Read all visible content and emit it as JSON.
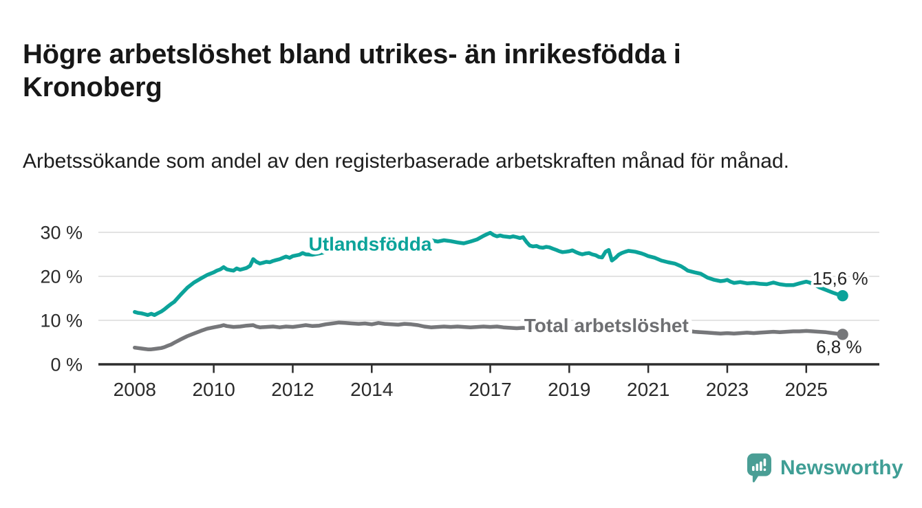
{
  "branding": {
    "logo_text": "Newsworthy",
    "logo_icon": "bar-chart-speech-bubble-icon",
    "logo_color": "#4a9e95"
  },
  "colors": {
    "background": "#ffffff",
    "accent_teal": "#0ca39a",
    "series_gray": "#76777a",
    "axis": "#2d2d2d",
    "grid": "#dadada",
    "title_text": "#171717",
    "logo_teal": "#3f9e95"
  },
  "chart_data": {
    "type": "line",
    "title": "Högre arbetslöshet bland utrikes- än inrikesfödda i Kronoberg",
    "subtitle": "Arbetssökande som andel av den registerbaserade arbetskraften månad för månad.",
    "grid": "horizontal",
    "grid_color": "#dadada",
    "axis_color": "#2d2d2d",
    "legend_position": "inline-labels",
    "xlim": [
      2007.08,
      2026.85
    ],
    "ylim": [
      0,
      31.25
    ],
    "x_ticks": [
      {
        "v": 2008,
        "label": "2008"
      },
      {
        "v": 2010,
        "label": "2010"
      },
      {
        "v": 2012,
        "label": "2012"
      },
      {
        "v": 2014,
        "label": "2014"
      },
      {
        "v": 2017,
        "label": "2017"
      },
      {
        "v": 2019,
        "label": "2019"
      },
      {
        "v": 2021,
        "label": "2021"
      },
      {
        "v": 2023,
        "label": "2023"
      },
      {
        "v": 2025,
        "label": "2025"
      }
    ],
    "y_ticks": [
      {
        "v": 0,
        "label": "0 %"
      },
      {
        "v": 10,
        "label": "10 %"
      },
      {
        "v": 20,
        "label": "20 %"
      },
      {
        "v": 30,
        "label": "30 %"
      }
    ],
    "series": [
      {
        "id": "utlandsfodda",
        "name": "Utlandsfödda",
        "color": "#0ca39a",
        "label_anchor": {
          "x": 2013.96,
          "y": 27.3
        },
        "end_label": "15,6 %",
        "end_value": 15.6,
        "points": [
          [
            2008,
            11.9
          ],
          [
            2008.08,
            11.7
          ],
          [
            2008.17,
            11.6
          ],
          [
            2008.25,
            11.4
          ],
          [
            2008.33,
            11.2
          ],
          [
            2008.42,
            11.5
          ],
          [
            2008.5,
            11.2
          ],
          [
            2008.58,
            11.6
          ],
          [
            2008.67,
            12
          ],
          [
            2008.75,
            12.5
          ],
          [
            2008.83,
            13.1
          ],
          [
            2008.92,
            13.7
          ],
          [
            2009,
            14.2
          ],
          [
            2009.17,
            15.9
          ],
          [
            2009.33,
            17.4
          ],
          [
            2009.5,
            18.6
          ],
          [
            2009.67,
            19.5
          ],
          [
            2009.83,
            20.3
          ],
          [
            2010,
            20.9
          ],
          [
            2010.08,
            21.3
          ],
          [
            2010.17,
            21.6
          ],
          [
            2010.25,
            22.1
          ],
          [
            2010.33,
            21.6
          ],
          [
            2010.42,
            21.4
          ],
          [
            2010.5,
            21.3
          ],
          [
            2010.58,
            21.8
          ],
          [
            2010.67,
            21.5
          ],
          [
            2010.75,
            21.7
          ],
          [
            2010.83,
            21.9
          ],
          [
            2010.92,
            22.4
          ],
          [
            2011,
            23.9
          ],
          [
            2011.08,
            23.3
          ],
          [
            2011.17,
            22.9
          ],
          [
            2011.25,
            23.1
          ],
          [
            2011.33,
            23.3
          ],
          [
            2011.42,
            23.2
          ],
          [
            2011.5,
            23.5
          ],
          [
            2011.58,
            23.7
          ],
          [
            2011.67,
            23.9
          ],
          [
            2011.75,
            24.2
          ],
          [
            2011.83,
            24.5
          ],
          [
            2011.92,
            24.2
          ],
          [
            2012,
            24.6
          ],
          [
            2012.17,
            24.9
          ],
          [
            2012.25,
            25.3
          ],
          [
            2012.33,
            25
          ],
          [
            2012.5,
            24.9
          ],
          [
            2012.67,
            25.2
          ],
          [
            2012.83,
            25.5
          ],
          [
            2013,
            25.8
          ],
          [
            2013.17,
            26
          ],
          [
            2013.33,
            26.3
          ],
          [
            2013.5,
            26.1
          ],
          [
            2013.67,
            26.4
          ],
          [
            2013.83,
            26.7
          ],
          [
            2014,
            26.6
          ],
          [
            2014.17,
            26.9
          ],
          [
            2014.33,
            27.1
          ],
          [
            2014.5,
            26.9
          ],
          [
            2014.67,
            27.3
          ],
          [
            2014.83,
            27.5
          ],
          [
            2015,
            27.4
          ],
          [
            2015.17,
            27.7
          ],
          [
            2015.33,
            28
          ],
          [
            2015.5,
            28.2
          ],
          [
            2015.67,
            27.9
          ],
          [
            2015.83,
            28.2
          ],
          [
            2016,
            28
          ],
          [
            2016.17,
            27.7
          ],
          [
            2016.33,
            27.5
          ],
          [
            2016.5,
            27.9
          ],
          [
            2016.67,
            28.4
          ],
          [
            2016.83,
            29.2
          ],
          [
            2016.92,
            29.6
          ],
          [
            2017,
            29.9
          ],
          [
            2017.08,
            29.4
          ],
          [
            2017.17,
            29.1
          ],
          [
            2017.25,
            29.3
          ],
          [
            2017.33,
            29.1
          ],
          [
            2017.42,
            29
          ],
          [
            2017.5,
            28.9
          ],
          [
            2017.58,
            29.1
          ],
          [
            2017.67,
            28.9
          ],
          [
            2017.75,
            28.7
          ],
          [
            2017.83,
            28.9
          ],
          [
            2017.92,
            27.8
          ],
          [
            2018,
            27
          ],
          [
            2018.08,
            26.8
          ],
          [
            2018.17,
            26.9
          ],
          [
            2018.25,
            26.6
          ],
          [
            2018.33,
            26.5
          ],
          [
            2018.42,
            26.7
          ],
          [
            2018.5,
            26.6
          ],
          [
            2018.58,
            26.3
          ],
          [
            2018.67,
            26
          ],
          [
            2018.75,
            25.7
          ],
          [
            2018.83,
            25.5
          ],
          [
            2018.92,
            25.6
          ],
          [
            2019,
            25.7
          ],
          [
            2019.08,
            25.9
          ],
          [
            2019.17,
            25.5
          ],
          [
            2019.25,
            25.2
          ],
          [
            2019.33,
            25
          ],
          [
            2019.42,
            25.2
          ],
          [
            2019.5,
            25.3
          ],
          [
            2019.58,
            25
          ],
          [
            2019.67,
            24.8
          ],
          [
            2019.75,
            24.4
          ],
          [
            2019.83,
            24.3
          ],
          [
            2019.92,
            25.6
          ],
          [
            2020,
            26
          ],
          [
            2020.08,
            23.6
          ],
          [
            2020.17,
            24.2
          ],
          [
            2020.25,
            24.9
          ],
          [
            2020.33,
            25.3
          ],
          [
            2020.42,
            25.6
          ],
          [
            2020.5,
            25.8
          ],
          [
            2020.58,
            25.7
          ],
          [
            2020.67,
            25.6
          ],
          [
            2020.83,
            25.2
          ],
          [
            2020.92,
            24.9
          ],
          [
            2021,
            24.6
          ],
          [
            2021.17,
            24.2
          ],
          [
            2021.33,
            23.6
          ],
          [
            2021.5,
            23.2
          ],
          [
            2021.67,
            22.9
          ],
          [
            2021.83,
            22.3
          ],
          [
            2021.92,
            21.8
          ],
          [
            2022,
            21.3
          ],
          [
            2022.17,
            20.9
          ],
          [
            2022.33,
            20.6
          ],
          [
            2022.5,
            19.7
          ],
          [
            2022.67,
            19.2
          ],
          [
            2022.83,
            18.9
          ],
          [
            2022.92,
            19
          ],
          [
            2023,
            19.2
          ],
          [
            2023.08,
            18.8
          ],
          [
            2023.17,
            18.5
          ],
          [
            2023.33,
            18.7
          ],
          [
            2023.5,
            18.4
          ],
          [
            2023.67,
            18.5
          ],
          [
            2023.83,
            18.3
          ],
          [
            2024,
            18.2
          ],
          [
            2024.17,
            18.6
          ],
          [
            2024.33,
            18.2
          ],
          [
            2024.5,
            18
          ],
          [
            2024.67,
            18
          ],
          [
            2024.83,
            18.4
          ],
          [
            2025,
            18.8
          ],
          [
            2025.08,
            18.6
          ],
          [
            2025.17,
            18.3
          ],
          [
            2025.33,
            17.5
          ],
          [
            2025.5,
            16.9
          ],
          [
            2025.67,
            16.3
          ],
          [
            2025.83,
            15.8
          ],
          [
            2025.92,
            15.6
          ]
        ]
      },
      {
        "id": "total",
        "name": "Total arbetslöshet",
        "color": "#76777a",
        "label_color": "#6e6f72",
        "label_anchor": {
          "x": 2019.94,
          "y": 8.75
        },
        "end_label": "6,8 %",
        "end_value": 6.8,
        "points": [
          [
            2008,
            3.8
          ],
          [
            2008.08,
            3.7
          ],
          [
            2008.17,
            3.6
          ],
          [
            2008.25,
            3.5
          ],
          [
            2008.33,
            3.4
          ],
          [
            2008.42,
            3.4
          ],
          [
            2008.5,
            3.5
          ],
          [
            2008.58,
            3.6
          ],
          [
            2008.67,
            3.7
          ],
          [
            2008.75,
            3.9
          ],
          [
            2008.83,
            4.2
          ],
          [
            2008.92,
            4.5
          ],
          [
            2009,
            4.9
          ],
          [
            2009.17,
            5.7
          ],
          [
            2009.33,
            6.4
          ],
          [
            2009.5,
            7
          ],
          [
            2009.67,
            7.6
          ],
          [
            2009.83,
            8.1
          ],
          [
            2010,
            8.4
          ],
          [
            2010.17,
            8.7
          ],
          [
            2010.25,
            8.9
          ],
          [
            2010.33,
            8.7
          ],
          [
            2010.5,
            8.5
          ],
          [
            2010.67,
            8.6
          ],
          [
            2010.83,
            8.8
          ],
          [
            2011,
            8.9
          ],
          [
            2011.08,
            8.6
          ],
          [
            2011.17,
            8.4
          ],
          [
            2011.33,
            8.5
          ],
          [
            2011.5,
            8.6
          ],
          [
            2011.67,
            8.4
          ],
          [
            2011.83,
            8.6
          ],
          [
            2012,
            8.5
          ],
          [
            2012.17,
            8.7
          ],
          [
            2012.33,
            8.9
          ],
          [
            2012.5,
            8.7
          ],
          [
            2012.67,
            8.8
          ],
          [
            2012.83,
            9.1
          ],
          [
            2013,
            9.3
          ],
          [
            2013.17,
            9.5
          ],
          [
            2013.33,
            9.4
          ],
          [
            2013.5,
            9.3
          ],
          [
            2013.67,
            9.2
          ],
          [
            2013.83,
            9.3
          ],
          [
            2014,
            9.1
          ],
          [
            2014.17,
            9.4
          ],
          [
            2014.33,
            9.2
          ],
          [
            2014.5,
            9.1
          ],
          [
            2014.67,
            9
          ],
          [
            2014.83,
            9.2
          ],
          [
            2015,
            9.1
          ],
          [
            2015.17,
            8.9
          ],
          [
            2015.33,
            8.6
          ],
          [
            2015.5,
            8.4
          ],
          [
            2015.67,
            8.5
          ],
          [
            2015.83,
            8.6
          ],
          [
            2016,
            8.5
          ],
          [
            2016.17,
            8.6
          ],
          [
            2016.33,
            8.5
          ],
          [
            2016.5,
            8.4
          ],
          [
            2016.67,
            8.5
          ],
          [
            2016.83,
            8.6
          ],
          [
            2017,
            8.5
          ],
          [
            2017.17,
            8.6
          ],
          [
            2017.33,
            8.4
          ],
          [
            2017.5,
            8.3
          ],
          [
            2017.67,
            8.2
          ],
          [
            2017.83,
            8.3
          ],
          [
            2018,
            8.1
          ],
          [
            2018.17,
            8
          ],
          [
            2018.33,
            7.9
          ],
          [
            2018.5,
            8
          ],
          [
            2018.67,
            7.9
          ],
          [
            2018.83,
            8
          ],
          [
            2019,
            8
          ],
          [
            2019.17,
            8.1
          ],
          [
            2019.33,
            8
          ],
          [
            2019.5,
            8.1
          ],
          [
            2019.67,
            8
          ],
          [
            2019.83,
            8.1
          ],
          [
            2020,
            8.2
          ],
          [
            2020.17,
            8.7
          ],
          [
            2020.33,
            9.2
          ],
          [
            2020.5,
            9.4
          ],
          [
            2020.67,
            9.3
          ],
          [
            2020.83,
            9.2
          ],
          [
            2021,
            9.3
          ],
          [
            2021.17,
            9.1
          ],
          [
            2021.33,
            8.8
          ],
          [
            2021.5,
            8.5
          ],
          [
            2021.67,
            8.2
          ],
          [
            2021.83,
            7.9
          ],
          [
            2022,
            7.6
          ],
          [
            2022.17,
            7.4
          ],
          [
            2022.33,
            7.3
          ],
          [
            2022.5,
            7.2
          ],
          [
            2022.67,
            7.1
          ],
          [
            2022.83,
            7
          ],
          [
            2023,
            7.1
          ],
          [
            2023.17,
            7
          ],
          [
            2023.33,
            7.1
          ],
          [
            2023.5,
            7.2
          ],
          [
            2023.67,
            7.1
          ],
          [
            2023.83,
            7.2
          ],
          [
            2024,
            7.3
          ],
          [
            2024.17,
            7.4
          ],
          [
            2024.33,
            7.3
          ],
          [
            2024.5,
            7.4
          ],
          [
            2024.67,
            7.5
          ],
          [
            2024.83,
            7.5
          ],
          [
            2025,
            7.6
          ],
          [
            2025.17,
            7.5
          ],
          [
            2025.33,
            7.4
          ],
          [
            2025.5,
            7.3
          ],
          [
            2025.67,
            7.1
          ],
          [
            2025.83,
            6.9
          ],
          [
            2025.92,
            6.8
          ]
        ]
      }
    ]
  }
}
